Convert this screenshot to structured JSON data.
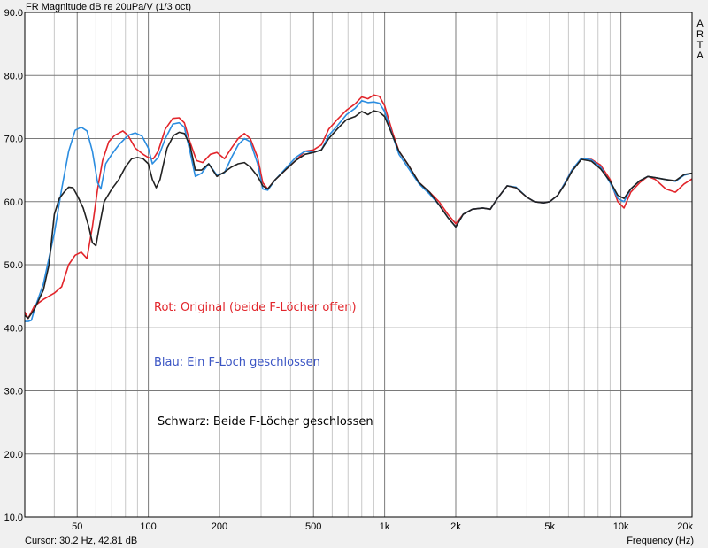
{
  "header": {
    "title": "FR Magnitude dB re 20uPa/V (1/3 oct)",
    "brand": "ARTA"
  },
  "status": {
    "cursor": "Cursor: 30.2 Hz, 42.81 dB",
    "xlabel": "Frequency (Hz)"
  },
  "annotations": [
    {
      "text": "Rot: Original (beide F-Löcher offen)",
      "color": "#e2252b"
    },
    {
      "text": "Blau: Ein F-Loch geschlossen",
      "color": "#3b55c4"
    },
    {
      "text": "Schwarz: Beide F-Löcher geschlossen",
      "color": "#000000"
    }
  ],
  "chart_data": {
    "type": "line",
    "title": "FR Magnitude dB re 20uPa/V (1/3 oct)",
    "xlabel": "Frequency (Hz)",
    "ylabel": "",
    "x_scale": "log",
    "xlim": [
      30,
      20000
    ],
    "ylim": [
      10,
      90
    ],
    "grid": true,
    "y_ticks": [
      10,
      20,
      30,
      40,
      50,
      60,
      70,
      80,
      90
    ],
    "y_tick_labels": [
      "10.0",
      "20.0",
      "30.0",
      "40.0",
      "50.0",
      "60.0",
      "70.0",
      "80.0",
      "90.0"
    ],
    "x_ticks": [
      50,
      100,
      200,
      500,
      1000,
      2000,
      5000,
      10000,
      20000
    ],
    "x_tick_labels": [
      "50",
      "100",
      "200",
      "500",
      "1k",
      "2k",
      "5k",
      "10k",
      "20k"
    ],
    "series": [
      {
        "color": "#e2252b",
        "points": [
          [
            30,
            42.5
          ],
          [
            31,
            41.5
          ],
          [
            33,
            43.5
          ],
          [
            36,
            44.5
          ],
          [
            40,
            45.5
          ],
          [
            43,
            46.5
          ],
          [
            46,
            50
          ],
          [
            49,
            51.5
          ],
          [
            52,
            52
          ],
          [
            55,
            51
          ],
          [
            58,
            56
          ],
          [
            61,
            62
          ],
          [
            64,
            66.5
          ],
          [
            68,
            69.5
          ],
          [
            72,
            70.5
          ],
          [
            78,
            71.2
          ],
          [
            82,
            70.5
          ],
          [
            88,
            68.5
          ],
          [
            95,
            67.5
          ],
          [
            100,
            67
          ],
          [
            105,
            66.8
          ],
          [
            110,
            68
          ],
          [
            118,
            71.5
          ],
          [
            127,
            73.2
          ],
          [
            135,
            73.3
          ],
          [
            142,
            72.5
          ],
          [
            150,
            69.5
          ],
          [
            160,
            66.5
          ],
          [
            170,
            66.2
          ],
          [
            183,
            67.5
          ],
          [
            195,
            67.8
          ],
          [
            210,
            66.8
          ],
          [
            225,
            68.5
          ],
          [
            240,
            70
          ],
          [
            255,
            70.8
          ],
          [
            270,
            70
          ],
          [
            290,
            67
          ],
          [
            305,
            63
          ],
          [
            320,
            62
          ],
          [
            345,
            63.5
          ],
          [
            380,
            65
          ],
          [
            420,
            66.5
          ],
          [
            460,
            68
          ],
          [
            500,
            68.2
          ],
          [
            540,
            69
          ],
          [
            580,
            71.5
          ],
          [
            630,
            73
          ],
          [
            690,
            74.5
          ],
          [
            750,
            75.5
          ],
          [
            800,
            76.6
          ],
          [
            850,
            76.3
          ],
          [
            900,
            76.9
          ],
          [
            950,
            76.7
          ],
          [
            1000,
            75.2
          ],
          [
            1080,
            71
          ],
          [
            1150,
            68
          ],
          [
            1250,
            66
          ],
          [
            1400,
            63
          ],
          [
            1550,
            61.5
          ],
          [
            1700,
            60
          ],
          [
            1850,
            58
          ],
          [
            2000,
            56.5
          ],
          [
            2150,
            58
          ],
          [
            2350,
            58.8
          ],
          [
            2600,
            59
          ],
          [
            2800,
            58.8
          ],
          [
            3000,
            60.5
          ],
          [
            3300,
            62.5
          ],
          [
            3600,
            62.2
          ],
          [
            4000,
            60.7
          ],
          [
            4300,
            60
          ],
          [
            4700,
            59.8
          ],
          [
            5000,
            60
          ],
          [
            5400,
            61
          ],
          [
            5800,
            63
          ],
          [
            6200,
            65
          ],
          [
            6800,
            66.8
          ],
          [
            7500,
            66.7
          ],
          [
            8200,
            65.8
          ],
          [
            9000,
            63.5
          ],
          [
            9700,
            60
          ],
          [
            10300,
            59
          ],
          [
            11000,
            61.5
          ],
          [
            12000,
            63
          ],
          [
            13000,
            64
          ],
          [
            14000,
            63.5
          ],
          [
            15500,
            62
          ],
          [
            17000,
            61.5
          ],
          [
            18500,
            62.8
          ],
          [
            20000,
            63.6
          ]
        ]
      },
      {
        "color": "#2b8de0",
        "points": [
          [
            30,
            41
          ],
          [
            31,
            41
          ],
          [
            32,
            41.2
          ],
          [
            33,
            43
          ],
          [
            36,
            47
          ],
          [
            40,
            55
          ],
          [
            43,
            62
          ],
          [
            46,
            68
          ],
          [
            49,
            71.3
          ],
          [
            52,
            71.8
          ],
          [
            55,
            71.2
          ],
          [
            58,
            68
          ],
          [
            61,
            63
          ],
          [
            63,
            62
          ],
          [
            66,
            66
          ],
          [
            70,
            67.5
          ],
          [
            75,
            69
          ],
          [
            82,
            70.5
          ],
          [
            88,
            70.9
          ],
          [
            94,
            70.4
          ],
          [
            100,
            68.5
          ],
          [
            104,
            66
          ],
          [
            110,
            67
          ],
          [
            118,
            70
          ],
          [
            127,
            72.3
          ],
          [
            135,
            72.5
          ],
          [
            142,
            71.8
          ],
          [
            150,
            68
          ],
          [
            158,
            64
          ],
          [
            168,
            64.5
          ],
          [
            180,
            66
          ],
          [
            195,
            64.2
          ],
          [
            210,
            64.6
          ],
          [
            225,
            67
          ],
          [
            240,
            69
          ],
          [
            255,
            70
          ],
          [
            270,
            69.5
          ],
          [
            290,
            66
          ],
          [
            305,
            62
          ],
          [
            320,
            61.8
          ],
          [
            345,
            63.5
          ],
          [
            380,
            65.2
          ],
          [
            420,
            67
          ],
          [
            460,
            68
          ],
          [
            500,
            67.8
          ],
          [
            540,
            68.2
          ],
          [
            580,
            70.5
          ],
          [
            630,
            72
          ],
          [
            690,
            73.8
          ],
          [
            750,
            74.8
          ],
          [
            800,
            76
          ],
          [
            850,
            75.7
          ],
          [
            900,
            75.8
          ],
          [
            950,
            75.6
          ],
          [
            1000,
            74.3
          ],
          [
            1080,
            70.5
          ],
          [
            1150,
            67.5
          ],
          [
            1250,
            65.5
          ],
          [
            1400,
            62.8
          ],
          [
            1550,
            61.2
          ],
          [
            1700,
            59.5
          ],
          [
            1850,
            57.5
          ],
          [
            2000,
            56
          ],
          [
            2150,
            58
          ],
          [
            2350,
            58.8
          ],
          [
            2600,
            59
          ],
          [
            2800,
            58.8
          ],
          [
            3000,
            60.5
          ],
          [
            3300,
            62.5
          ],
          [
            3600,
            62.3
          ],
          [
            4000,
            60.7
          ],
          [
            4300,
            60
          ],
          [
            4700,
            59.8
          ],
          [
            5000,
            60
          ],
          [
            5400,
            61
          ],
          [
            5800,
            63
          ],
          [
            6200,
            65
          ],
          [
            6800,
            66.9
          ],
          [
            7500,
            66.6
          ],
          [
            8200,
            65.5
          ],
          [
            9000,
            63
          ],
          [
            9700,
            60.5
          ],
          [
            10300,
            60
          ],
          [
            11000,
            62
          ],
          [
            12000,
            63.3
          ],
          [
            13000,
            64
          ],
          [
            14000,
            63.8
          ],
          [
            15500,
            63.5
          ],
          [
            17000,
            63.2
          ],
          [
            18500,
            64.2
          ],
          [
            20000,
            64.5
          ]
        ]
      },
      {
        "color": "#222222",
        "points": [
          [
            30,
            42
          ],
          [
            31,
            41.5
          ],
          [
            33,
            43
          ],
          [
            36,
            46
          ],
          [
            38,
            50
          ],
          [
            40,
            58
          ],
          [
            42,
            60.5
          ],
          [
            44,
            61.5
          ],
          [
            46,
            62.3
          ],
          [
            48,
            62.2
          ],
          [
            50,
            61
          ],
          [
            53,
            59
          ],
          [
            56,
            56
          ],
          [
            58,
            53.5
          ],
          [
            60,
            53
          ],
          [
            62,
            56
          ],
          [
            65,
            60
          ],
          [
            70,
            62
          ],
          [
            75,
            63.5
          ],
          [
            80,
            65.5
          ],
          [
            85,
            66.8
          ],
          [
            90,
            67
          ],
          [
            95,
            66.8
          ],
          [
            100,
            66
          ],
          [
            104,
            63.5
          ],
          [
            108,
            62.2
          ],
          [
            112,
            63.5
          ],
          [
            120,
            68.5
          ],
          [
            128,
            70.5
          ],
          [
            135,
            71
          ],
          [
            142,
            70.8
          ],
          [
            150,
            69
          ],
          [
            158,
            65
          ],
          [
            168,
            65
          ],
          [
            180,
            66
          ],
          [
            195,
            64
          ],
          [
            210,
            64.7
          ],
          [
            225,
            65.5
          ],
          [
            240,
            66
          ],
          [
            255,
            66.2
          ],
          [
            270,
            65.5
          ],
          [
            290,
            64
          ],
          [
            305,
            62.5
          ],
          [
            320,
            62
          ],
          [
            345,
            63.5
          ],
          [
            380,
            65
          ],
          [
            420,
            66.5
          ],
          [
            460,
            67.5
          ],
          [
            500,
            67.8
          ],
          [
            540,
            68.2
          ],
          [
            580,
            70
          ],
          [
            630,
            71.5
          ],
          [
            690,
            73
          ],
          [
            750,
            73.5
          ],
          [
            800,
            74.3
          ],
          [
            850,
            73.8
          ],
          [
            900,
            74.4
          ],
          [
            950,
            74.2
          ],
          [
            1000,
            73.5
          ],
          [
            1080,
            70.5
          ],
          [
            1150,
            68
          ],
          [
            1250,
            66
          ],
          [
            1400,
            63
          ],
          [
            1550,
            61.5
          ],
          [
            1700,
            59.5
          ],
          [
            1850,
            57.5
          ],
          [
            2000,
            56
          ],
          [
            2150,
            58
          ],
          [
            2350,
            58.8
          ],
          [
            2600,
            59
          ],
          [
            2800,
            58.8
          ],
          [
            3000,
            60.5
          ],
          [
            3300,
            62.5
          ],
          [
            3600,
            62.2
          ],
          [
            4000,
            60.7
          ],
          [
            4300,
            60
          ],
          [
            4700,
            59.8
          ],
          [
            5000,
            60
          ],
          [
            5400,
            61
          ],
          [
            5800,
            62.8
          ],
          [
            6200,
            64.8
          ],
          [
            6800,
            66.7
          ],
          [
            7500,
            66.4
          ],
          [
            8200,
            65.2
          ],
          [
            9000,
            63.2
          ],
          [
            9700,
            61
          ],
          [
            10300,
            60.5
          ],
          [
            11000,
            62
          ],
          [
            12000,
            63.3
          ],
          [
            13000,
            64
          ],
          [
            14000,
            63.8
          ],
          [
            15500,
            63.5
          ],
          [
            17000,
            63.3
          ],
          [
            18500,
            64.3
          ],
          [
            20000,
            64.5
          ]
        ]
      }
    ]
  }
}
